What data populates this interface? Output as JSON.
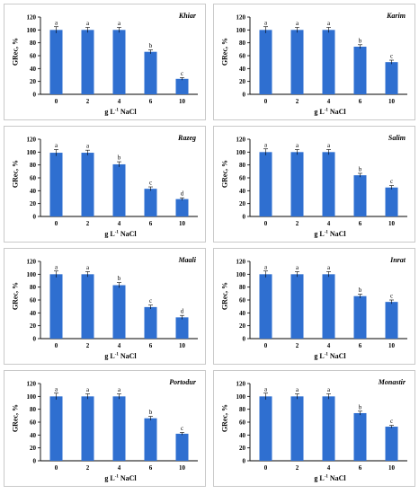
{
  "axis_label_x_parts": [
    "g L",
    "-1",
    " NaCl"
  ],
  "chart_data": [
    {
      "type": "bar",
      "title": "Khiar",
      "categories": [
        "0",
        "2",
        "4",
        "6",
        "10"
      ],
      "values": [
        100,
        100,
        100,
        66,
        24
      ],
      "errors": [
        5,
        4,
        4,
        3,
        2
      ],
      "letters": [
        "a",
        "a",
        "a",
        "b",
        "c"
      ],
      "ylabel": "GRec, %",
      "xlabel": "g L-1 NaCl",
      "ylim": [
        0,
        120
      ],
      "yticks": [
        0,
        20,
        40,
        60,
        80,
        100,
        120
      ],
      "color": "#2f6fd0"
    },
    {
      "type": "bar",
      "title": "Karim",
      "categories": [
        "0",
        "2",
        "4",
        "6",
        "10"
      ],
      "values": [
        100,
        100,
        100,
        74,
        50
      ],
      "errors": [
        5,
        4,
        4,
        3,
        3
      ],
      "letters": [
        "a",
        "a",
        "a",
        "b",
        "c"
      ],
      "ylabel": "GRec, %",
      "xlabel": "g L-1 NaCl",
      "ylim": [
        0,
        120
      ],
      "yticks": [
        0,
        20,
        40,
        60,
        80,
        100,
        120
      ],
      "color": "#2f6fd0"
    },
    {
      "type": "bar",
      "title": "Razeg",
      "categories": [
        "0",
        "2",
        "4",
        "6",
        "10"
      ],
      "values": [
        99,
        99,
        81,
        43,
        27
      ],
      "errors": [
        5,
        4,
        4,
        3,
        2
      ],
      "letters": [
        "a",
        "a",
        "b",
        "c",
        "d"
      ],
      "ylabel": "GRec, %",
      "xlabel": "g L-1 NaCl",
      "ylim": [
        0,
        120
      ],
      "yticks": [
        0,
        20,
        40,
        60,
        80,
        100,
        120
      ],
      "color": "#2f6fd0"
    },
    {
      "type": "bar",
      "title": "Salim",
      "categories": [
        "0",
        "2",
        "4",
        "6",
        "10"
      ],
      "values": [
        100,
        100,
        100,
        64,
        45
      ],
      "errors": [
        5,
        4,
        4,
        3,
        3
      ],
      "letters": [
        "a",
        "a",
        "a",
        "b",
        "c"
      ],
      "ylabel": "GRec, %",
      "xlabel": "g L-1 NaCl",
      "ylim": [
        0,
        120
      ],
      "yticks": [
        0,
        20,
        40,
        60,
        80,
        100,
        120
      ],
      "color": "#2f6fd0"
    },
    {
      "type": "bar",
      "title": "Maali",
      "categories": [
        "0",
        "2",
        "4",
        "6",
        "10"
      ],
      "values": [
        100,
        100,
        83,
        49,
        33
      ],
      "errors": [
        5,
        4,
        4,
        3,
        3
      ],
      "letters": [
        "a",
        "a",
        "b",
        "c",
        "d"
      ],
      "ylabel": "GRec, %",
      "xlabel": "g L-1 NaCl",
      "ylim": [
        0,
        120
      ],
      "yticks": [
        0,
        20,
        40,
        60,
        80,
        100,
        120
      ],
      "color": "#2f6fd0"
    },
    {
      "type": "bar",
      "title": "Inrat",
      "categories": [
        "0",
        "2",
        "4",
        "6",
        "10"
      ],
      "values": [
        100,
        100,
        100,
        66,
        57
      ],
      "errors": [
        5,
        4,
        4,
        3,
        3
      ],
      "letters": [
        "a",
        "a",
        "a",
        "b",
        "c"
      ],
      "ylabel": "GRec, %",
      "xlabel": "g L-1 NaCl",
      "ylim": [
        0,
        120
      ],
      "yticks": [
        0,
        20,
        40,
        60,
        80,
        100,
        120
      ],
      "color": "#2f6fd0"
    },
    {
      "type": "bar",
      "title": "Portodur",
      "categories": [
        "0",
        "2",
        "4",
        "6",
        "10"
      ],
      "values": [
        100,
        100,
        100,
        66,
        42
      ],
      "errors": [
        5,
        4,
        4,
        3,
        2
      ],
      "letters": [
        "a",
        "a",
        "a",
        "b",
        "c"
      ],
      "ylabel": "GRec, %",
      "xlabel": "g L-1 NaCl",
      "ylim": [
        0,
        120
      ],
      "yticks": [
        0,
        20,
        40,
        60,
        80,
        100,
        120
      ],
      "color": "#2f6fd0"
    },
    {
      "type": "bar",
      "title": "Monastir",
      "categories": [
        "0",
        "2",
        "4",
        "6",
        "10"
      ],
      "values": [
        100,
        100,
        100,
        74,
        53
      ],
      "errors": [
        5,
        4,
        4,
        3,
        2
      ],
      "letters": [
        "a",
        "a",
        "a",
        "b",
        "c"
      ],
      "ylabel": "GRec, %",
      "xlabel": "g L-1 NaCl",
      "ylim": [
        0,
        120
      ],
      "yticks": [
        0,
        20,
        40,
        60,
        80,
        100,
        120
      ],
      "color": "#2f6fd0"
    }
  ]
}
